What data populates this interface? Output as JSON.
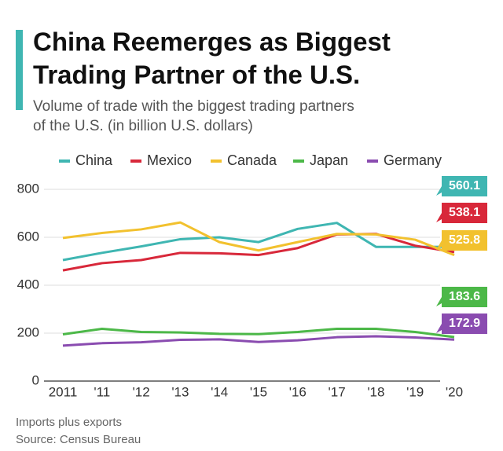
{
  "chart_data": {
    "type": "line",
    "title": [
      "China Reemerges as Biggest",
      "Trading Partner of the U.S."
    ],
    "subtitle": [
      "Volume of trade with the biggest trading partners",
      "of the U.S. (in billion U.S. dollars)"
    ],
    "categories": [
      "2011",
      "'11",
      "'12",
      "'13",
      "'14",
      "'15",
      "'16",
      "'17",
      "'18",
      "'19",
      "'20"
    ],
    "series": [
      {
        "name": "China",
        "color": "#3fb6b2",
        "values": [
          505,
          535,
          562,
          592,
          600,
          580,
          635,
          660,
          560,
          560,
          560.1
        ]
      },
      {
        "name": "Mexico",
        "color": "#d8283a",
        "values": [
          462,
          492,
          505,
          535,
          533,
          526,
          555,
          612,
          614,
          565,
          538.1
        ]
      },
      {
        "name": "Canada",
        "color": "#f2c12e",
        "values": [
          597,
          618,
          633,
          662,
          580,
          545,
          580,
          614,
          612,
          590,
          525.8
        ]
      },
      {
        "name": "Japan",
        "color": "#4cb848",
        "values": [
          195,
          218,
          205,
          203,
          197,
          196,
          205,
          218,
          218,
          205,
          183.6
        ]
      },
      {
        "name": "Germany",
        "color": "#8a4cb0",
        "values": [
          148,
          158,
          162,
          172,
          174,
          163,
          170,
          183,
          187,
          182,
          172.9
        ]
      }
    ],
    "ylim": [
      0,
      800
    ],
    "yticks": [
      0,
      200,
      400,
      600,
      800
    ],
    "grid": true,
    "notes": [
      "Imports plus exports",
      "Source: Census Bureau"
    ]
  }
}
